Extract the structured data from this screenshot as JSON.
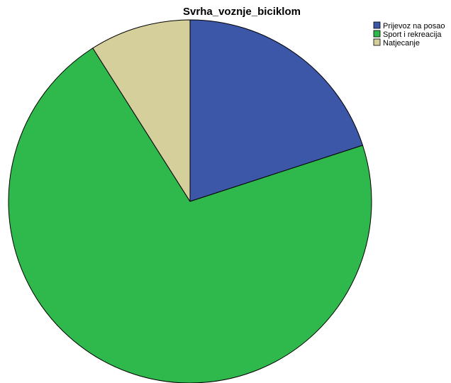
{
  "chart_data": {
    "type": "pie",
    "title": "Svrha_voznje_biciklom",
    "categories": [
      "Prijevoz na posao",
      "Sport i rekreacija",
      "Natjecanje"
    ],
    "values": [
      20,
      71,
      9
    ],
    "colors": [
      "#3c56a8",
      "#2fb84b",
      "#d5cf9c"
    ],
    "start_angle_deg": 0,
    "direction": "clockwise",
    "legend_position": "top-right",
    "slice_labels_shown": false
  }
}
